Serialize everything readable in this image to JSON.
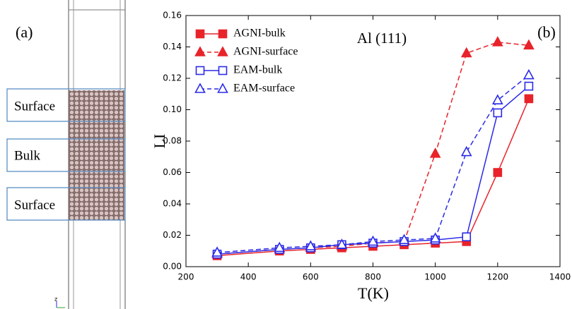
{
  "panel_a": {
    "label": "(a)",
    "regions": [
      "Surface",
      "Bulk",
      "Surface"
    ],
    "axis_label": "z"
  },
  "chart_data": {
    "type": "line",
    "panel_label": "(b)",
    "annotation": "Al (111)",
    "x_label": "T(K)",
    "y_label": "LI",
    "x": [
      300,
      500,
      600,
      700,
      800,
      900,
      1000,
      1100,
      1200,
      1300
    ],
    "xlim": [
      200,
      1400
    ],
    "xticks": [
      200,
      400,
      600,
      800,
      1000,
      1200,
      1400
    ],
    "ylim": [
      0,
      0.16
    ],
    "yticks": [
      {
        "value": 0,
        "label": "0.00"
      },
      0.02,
      0.04,
      0.06,
      0.08,
      {
        "value": 0.1,
        "label": "0.10"
      },
      0.12,
      0.14,
      0.16
    ],
    "legend": "upper left",
    "series": [
      {
        "name": "AGNI-bulk",
        "color": "#e8232a",
        "marker": "square",
        "filled": true,
        "dashed": false,
        "values": [
          0.007,
          0.01,
          0.011,
          0.012,
          0.013,
          0.014,
          0.015,
          0.016,
          0.06,
          0.107
        ]
      },
      {
        "name": "AGNI-surface",
        "color": "#e8232a",
        "marker": "triangle",
        "filled": true,
        "dashed": true,
        "values": [
          0.008,
          0.011,
          0.012,
          0.013,
          0.015,
          0.016,
          0.072,
          0.136,
          0.143,
          0.141
        ]
      },
      {
        "name": "EAM-bulk",
        "color": "#2a2ae8",
        "marker": "square",
        "filled": false,
        "dashed": false,
        "values": [
          0.008,
          0.011,
          0.012,
          0.014,
          0.015,
          0.016,
          0.017,
          0.019,
          0.098,
          0.115
        ]
      },
      {
        "name": "EAM-surface",
        "color": "#2a2ae8",
        "marker": "triangle",
        "filled": false,
        "dashed": true,
        "values": [
          0.009,
          0.012,
          0.013,
          0.014,
          0.016,
          0.017,
          0.018,
          0.073,
          0.106,
          0.122
        ]
      }
    ]
  }
}
